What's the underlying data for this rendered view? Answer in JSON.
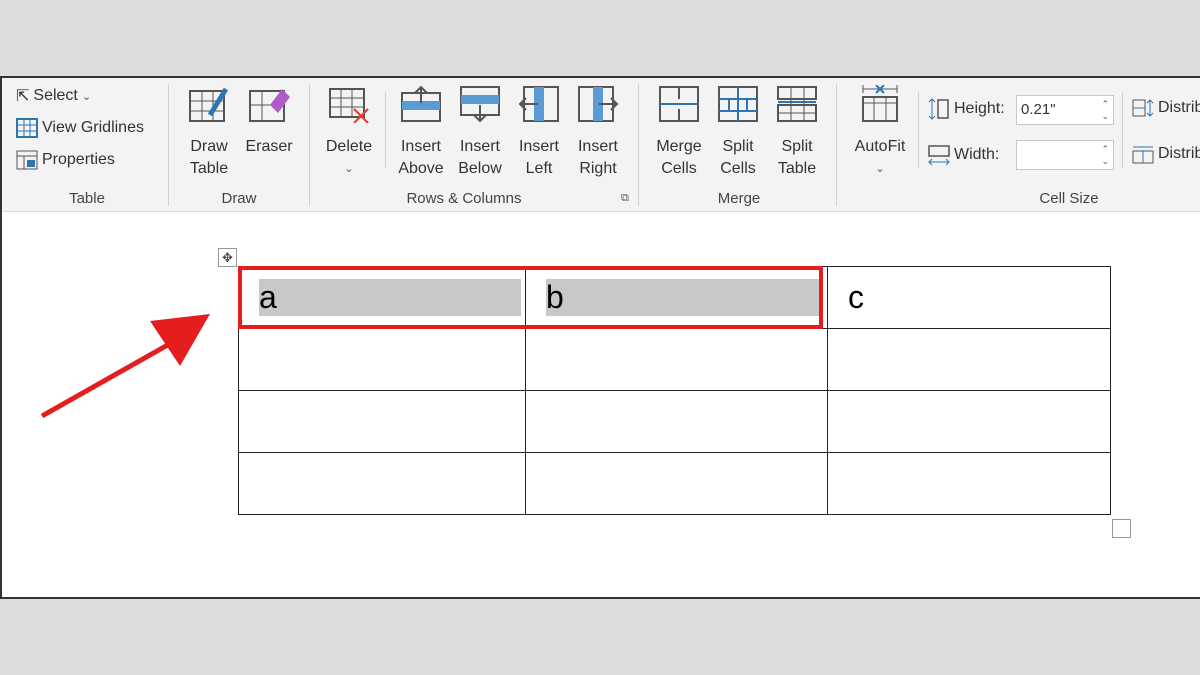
{
  "ribbon": {
    "table_group": {
      "label": "Table",
      "select": "Select",
      "view_gridlines": "View Gridlines",
      "properties": "Properties"
    },
    "draw_group": {
      "label": "Draw",
      "draw_table": [
        "Draw",
        "Table"
      ],
      "eraser": "Eraser"
    },
    "rows_columns_group": {
      "label": "Rows & Columns",
      "delete": "Delete",
      "insert_above": [
        "Insert",
        "Above"
      ],
      "insert_below": [
        "Insert",
        "Below"
      ],
      "insert_left": [
        "Insert",
        "Left"
      ],
      "insert_right": [
        "Insert",
        "Right"
      ]
    },
    "merge_group": {
      "label": "Merge",
      "merge_cells": [
        "Merge",
        "Cells"
      ],
      "split_cells": [
        "Split",
        "Cells"
      ],
      "split_table": [
        "Split",
        "Table"
      ]
    },
    "cell_size_group": {
      "label": "Cell Size",
      "autofit": "AutoFit",
      "height_label": "Height:",
      "height_value": "0.21\"",
      "width_label": "Width:",
      "width_value": "",
      "distribute_rows": "Distrib",
      "distribute_columns": "Distrib"
    }
  },
  "document": {
    "table": {
      "rows": [
        [
          "a",
          "b",
          "c"
        ],
        [
          "",
          "",
          ""
        ],
        [
          "",
          "",
          ""
        ],
        [
          "",
          "",
          ""
        ]
      ],
      "selected_cells": [
        "a",
        "b"
      ]
    }
  },
  "colors": {
    "accent": "#2e75b6",
    "highlight": "#e41e1e",
    "selection": "#c8c8c8"
  }
}
